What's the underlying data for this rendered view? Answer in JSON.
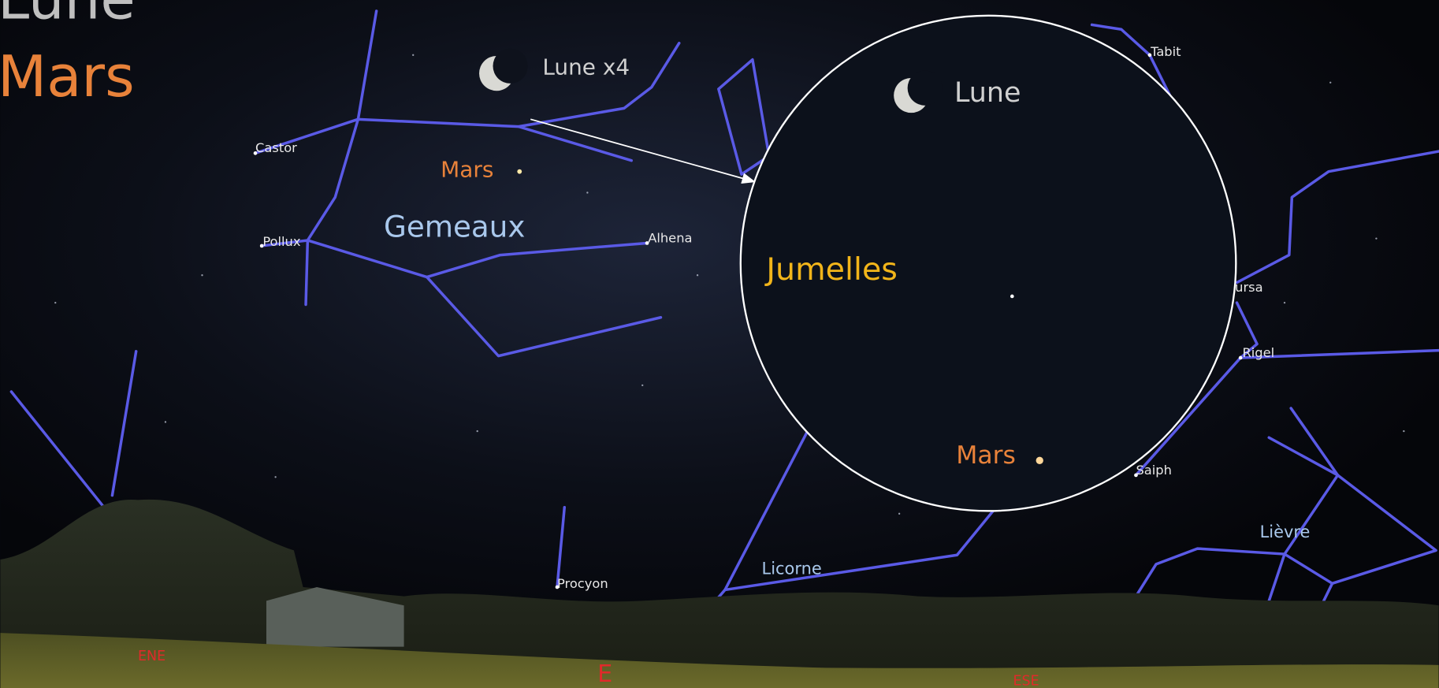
{
  "title": {
    "line1": "Lune",
    "line2": "Mars"
  },
  "labels": {
    "moon_x4": "Lune x4",
    "mars": "Mars",
    "gemini": "Gemeaux",
    "monoceros": "Licorne",
    "lepus": "Lièvre"
  },
  "stars": {
    "castor": "Castor",
    "pollux": "Pollux",
    "alhena": "Alhena",
    "procyon": "Procyon",
    "tabit": "Tabit",
    "bellatrix_partial": "ursa",
    "rigel": "Rigel",
    "saiph": "Saiph"
  },
  "binoculars": {
    "moon": "Lune",
    "title": "Jumelles",
    "mars": "Mars"
  },
  "horizon": {
    "ene": "ENE",
    "e": "E",
    "ese": "ESE"
  }
}
